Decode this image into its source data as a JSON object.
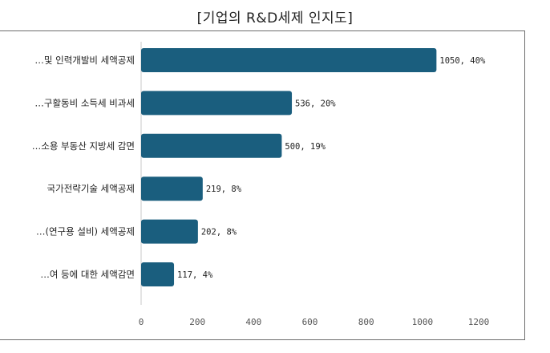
{
  "chart_data": {
    "type": "bar",
    "orientation": "horizontal",
    "title": "[기업의 R&D세제 인지도]",
    "categories": [
      "…및 인력개발비 세액공제",
      "…구활동비 소득세 비과세",
      "…소용 부동산 지방세 감면",
      "국가전략기술 세액공제",
      "…(연구용 설비) 세액공제",
      "…여 등에 대한 세액감면"
    ],
    "values": [
      1050,
      536,
      500,
      219,
      202,
      117
    ],
    "value_labels": [
      "1050, 40%",
      "536, 20%",
      "500, 19%",
      "219, 8%",
      "202, 8%",
      "117, 4%"
    ],
    "xlim": [
      0,
      1200
    ],
    "xticks": [
      0,
      200,
      400,
      600,
      800,
      1000,
      1200
    ],
    "bar_color": "#1a5e7e",
    "grid": false,
    "legend": "none"
  }
}
